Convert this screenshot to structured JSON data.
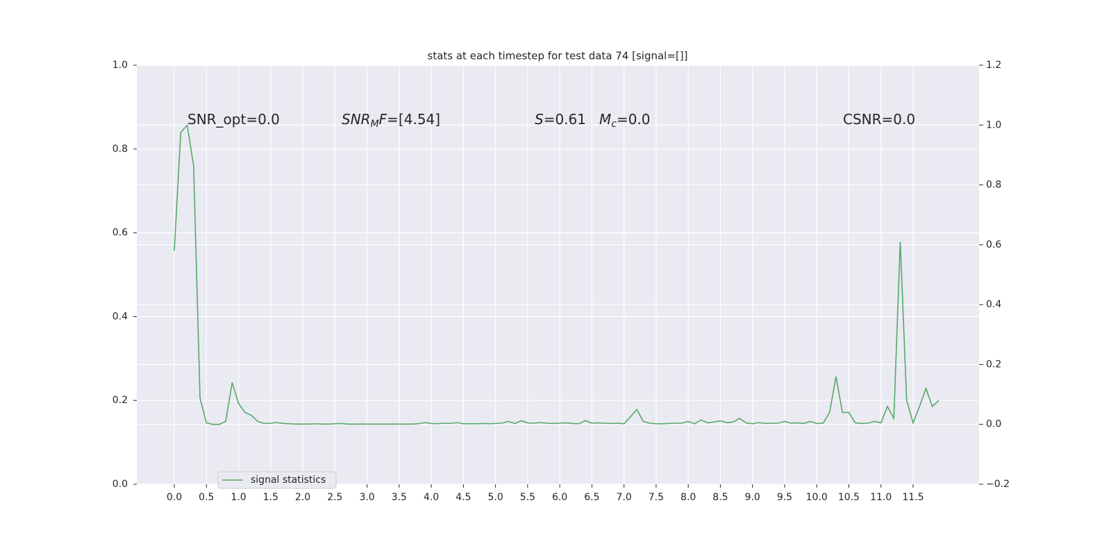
{
  "chart_data": {
    "type": "line",
    "title": "stats at each timestep for test data 74 [signal=[]]",
    "x": [
      0.0,
      0.1,
      0.2,
      0.3,
      0.4,
      0.5,
      0.6,
      0.7,
      0.8,
      0.9,
      1.0,
      1.1,
      1.2,
      1.3,
      1.4,
      1.5,
      1.6,
      1.7,
      1.8,
      1.9,
      2.0,
      2.1,
      2.2,
      2.3,
      2.4,
      2.5,
      2.6,
      2.7,
      2.8,
      2.9,
      3.0,
      3.1,
      3.2,
      3.3,
      3.4,
      3.5,
      3.6,
      3.7,
      3.8,
      3.9,
      4.0,
      4.1,
      4.2,
      4.3,
      4.4,
      4.5,
      4.6,
      4.7,
      4.8,
      4.9,
      5.0,
      5.1,
      5.2,
      5.3,
      5.4,
      5.5,
      5.6,
      5.7,
      5.8,
      5.9,
      6.0,
      6.1,
      6.2,
      6.3,
      6.4,
      6.5,
      6.6,
      6.7,
      6.8,
      6.9,
      7.0,
      7.1,
      7.2,
      7.3,
      7.4,
      7.5,
      7.6,
      7.7,
      7.8,
      7.9,
      8.0,
      8.1,
      8.2,
      8.3,
      8.4,
      8.5,
      8.6,
      8.7,
      8.8,
      8.9,
      9.0,
      9.1,
      9.2,
      9.3,
      9.4,
      9.5,
      9.6,
      9.7,
      9.8,
      9.9,
      10.0,
      10.1,
      10.2,
      10.3,
      10.4,
      10.5,
      10.6,
      10.7,
      10.8,
      10.9,
      11.0,
      11.1,
      11.2,
      11.3,
      11.4,
      11.5,
      11.6,
      11.7,
      11.8,
      11.9
    ],
    "series": [
      {
        "name": "signal statistics",
        "color": "#55a868",
        "axis": "y2",
        "values": [
          0.58,
          0.975,
          1.0,
          0.865,
          0.088,
          0.005,
          0.0,
          0.0,
          0.01,
          0.14,
          0.07,
          0.04,
          0.03,
          0.01,
          0.003,
          0.004,
          0.006,
          0.003,
          0.002,
          0.001,
          0.001,
          0.001,
          0.002,
          0.001,
          0.001,
          0.002,
          0.003,
          0.001,
          0.001,
          0.001,
          0.001,
          0.001,
          0.001,
          0.001,
          0.001,
          0.001,
          0.001,
          0.001,
          0.002,
          0.006,
          0.003,
          0.002,
          0.004,
          0.003,
          0.006,
          0.002,
          0.002,
          0.002,
          0.003,
          0.002,
          0.003,
          0.004,
          0.01,
          0.003,
          0.012,
          0.005,
          0.004,
          0.006,
          0.004,
          0.003,
          0.004,
          0.005,
          0.003,
          0.002,
          0.013,
          0.004,
          0.005,
          0.004,
          0.003,
          0.004,
          0.002,
          0.025,
          0.05,
          0.01,
          0.004,
          0.002,
          0.002,
          0.003,
          0.004,
          0.004,
          0.01,
          0.002,
          0.015,
          0.005,
          0.008,
          0.012,
          0.006,
          0.008,
          0.02,
          0.005,
          0.002,
          0.006,
          0.003,
          0.004,
          0.004,
          0.01,
          0.004,
          0.005,
          0.003,
          0.01,
          0.003,
          0.004,
          0.04,
          0.16,
          0.04,
          0.04,
          0.005,
          0.003,
          0.004,
          0.01,
          0.005,
          0.06,
          0.02,
          0.61,
          0.08,
          0.005,
          0.06,
          0.12,
          0.06,
          0.08
        ]
      }
    ],
    "xlim": [
      -0.584,
      12.527
    ],
    "xticks": [
      {
        "value": 0,
        "label": "0.0"
      },
      {
        "value": 0.5,
        "label": "0.5"
      },
      {
        "value": 1,
        "label": "1.0"
      },
      {
        "value": 1.5,
        "label": "1.5"
      },
      {
        "value": 2,
        "label": "2.0"
      },
      {
        "value": 2.5,
        "label": "2.5"
      },
      {
        "value": 3,
        "label": "3.0"
      },
      {
        "value": 3.5,
        "label": "3.5"
      },
      {
        "value": 4,
        "label": "4.0"
      },
      {
        "value": 4.5,
        "label": "4.5"
      },
      {
        "value": 5,
        "label": "5.0"
      },
      {
        "value": 5.5,
        "label": "5.5"
      },
      {
        "value": 6,
        "label": "6.0"
      },
      {
        "value": 6.5,
        "label": "6.5"
      },
      {
        "value": 7,
        "label": "7.0"
      },
      {
        "value": 7.5,
        "label": "7.5"
      },
      {
        "value": 8,
        "label": "8.0"
      },
      {
        "value": 8.5,
        "label": "8.5"
      },
      {
        "value": 9,
        "label": "9.0"
      },
      {
        "value": 9.5,
        "label": "9.5"
      },
      {
        "value": 10,
        "label": "10.0"
      },
      {
        "value": 10.5,
        "label": "10.5"
      },
      {
        "value": 11,
        "label": "11.0"
      },
      {
        "value": 11.5,
        "label": "11.5"
      }
    ],
    "ylim": [
      0,
      1
    ],
    "yticks": [
      {
        "value": 0,
        "label": "0.0"
      },
      {
        "value": 0.2,
        "label": "0.2"
      },
      {
        "value": 0.4,
        "label": "0.4"
      },
      {
        "value": 0.6,
        "label": "0.6"
      },
      {
        "value": 0.8,
        "label": "0.8"
      },
      {
        "value": 1,
        "label": "1.0"
      }
    ],
    "y2lim": [
      -0.2,
      1.2
    ],
    "y2ticks": [
      {
        "value": -0.2,
        "label": "−0.2"
      },
      {
        "value": 0,
        "label": "0.0"
      },
      {
        "value": 0.2,
        "label": "0.2"
      },
      {
        "value": 0.4,
        "label": "0.4"
      },
      {
        "value": 0.6,
        "label": "0.6"
      },
      {
        "value": 0.8,
        "label": "0.8"
      },
      {
        "value": 1,
        "label": "1.0"
      },
      {
        "value": 1.2,
        "label": "1.2"
      }
    ],
    "grid": true,
    "legend": "lower left",
    "annotations": [
      [
        {
          "text": "SNR_opt=0.0",
          "style": "normal"
        }
      ],
      [
        {
          "text": "SNR",
          "style": "italic"
        },
        {
          "text": "M",
          "style": "sub"
        },
        {
          "text": "F",
          "style": "italic"
        },
        {
          "text": "=[4.54]",
          "style": "normal"
        }
      ],
      [
        {
          "text": "S",
          "style": "italic"
        },
        {
          "text": "=0.61",
          "style": "normal"
        }
      ],
      [
        {
          "text": "M",
          "style": "italic"
        },
        {
          "text": "c",
          "style": "sub"
        },
        {
          "text": "=0.0",
          "style": "normal"
        }
      ],
      [
        {
          "text": "CSNR=0.0",
          "style": "normal"
        }
      ]
    ]
  }
}
